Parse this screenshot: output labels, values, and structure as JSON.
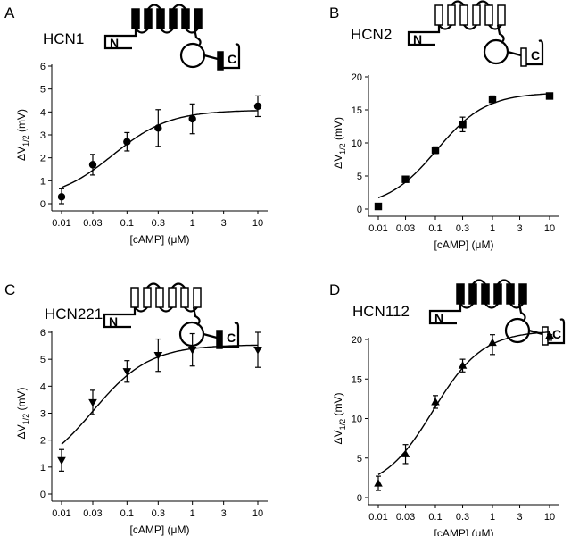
{
  "chart_data": [
    {
      "type": "scatter",
      "panel_label": "A",
      "construct": "HCN1",
      "xlabel": "[cAMP] (μM)",
      "ylabel_main": "ΔV",
      "ylabel_sub": "1/2",
      "ylabel_unit": " (mV)",
      "x_scale": "log",
      "xticks": [
        "0.01",
        "0.03",
        "0.1",
        "0.3",
        "1",
        "3",
        "10"
      ],
      "yticks": [
        "0",
        "1",
        "2",
        "3",
        "4",
        "5",
        "6"
      ],
      "ylim": [
        0,
        6
      ],
      "xlim": [
        0.01,
        10
      ],
      "marker": "circle",
      "cartoon_core": "filled",
      "cartoon_cnbd": "filled",
      "series": [
        {
          "x": [
            0.01,
            0.03,
            0.1,
            0.3,
            1,
            10
          ],
          "y": [
            0.3,
            1.7,
            2.7,
            3.3,
            3.7,
            4.25
          ],
          "err": [
            0.35,
            0.45,
            0.4,
            0.8,
            0.65,
            0.45
          ]
        }
      ]
    },
    {
      "type": "scatter",
      "panel_label": "B",
      "construct": "HCN2",
      "xlabel": "[cAMP] (μM)",
      "ylabel_main": "ΔV",
      "ylabel_sub": "1/2",
      "ylabel_unit": " (mV)",
      "x_scale": "log",
      "xticks": [
        "0.01",
        "0.03",
        "0.1",
        "0.3",
        "1",
        "3",
        "10"
      ],
      "yticks": [
        "0",
        "5",
        "10",
        "15",
        "20"
      ],
      "ylim": [
        0,
        20
      ],
      "xlim": [
        0.01,
        10
      ],
      "marker": "square",
      "cartoon_core": "open",
      "cartoon_cnbd": "open",
      "series": [
        {
          "x": [
            0.01,
            0.03,
            0.1,
            0.3,
            1,
            10
          ],
          "y": [
            0.4,
            4.5,
            8.9,
            12.8,
            16.6,
            17.1
          ],
          "err": [
            0.3,
            0.3,
            0.5,
            1.1,
            0.5,
            0.3
          ]
        }
      ]
    },
    {
      "type": "scatter",
      "panel_label": "C",
      "construct": "HCN221",
      "xlabel": "[cAMP] (μM)",
      "ylabel_main": "ΔV",
      "ylabel_sub": "1/2",
      "ylabel_unit": " (mV)",
      "x_scale": "log",
      "xticks": [
        "0.01",
        "0.03",
        "0.1",
        "0.3",
        "1",
        "3",
        "10"
      ],
      "yticks": [
        "0",
        "1",
        "2",
        "3",
        "4",
        "5",
        "6"
      ],
      "ylim": [
        0,
        6
      ],
      "xlim": [
        0.01,
        10
      ],
      "marker": "triangle-down",
      "cartoon_core": "open",
      "cartoon_cnbd": "filled",
      "series": [
        {
          "x": [
            0.01,
            0.03,
            0.1,
            0.3,
            1,
            10
          ],
          "y": [
            1.25,
            3.4,
            4.55,
            5.15,
            5.35,
            5.35
          ],
          "err": [
            0.4,
            0.45,
            0.4,
            0.6,
            0.6,
            0.65
          ]
        }
      ]
    },
    {
      "type": "scatter",
      "panel_label": "D",
      "construct": "HCN112",
      "xlabel": "[cAMP] (μM)",
      "ylabel_main": "ΔV",
      "ylabel_sub": "1/2",
      "ylabel_unit": " (mV)",
      "x_scale": "log",
      "xticks": [
        "0.01",
        "0.03",
        "0.1",
        "0.3",
        "1",
        "3",
        "10"
      ],
      "yticks": [
        "0",
        "5",
        "10",
        "15",
        "20"
      ],
      "ylim": [
        0,
        20
      ],
      "xlim": [
        0.01,
        10
      ],
      "marker": "triangle-up",
      "cartoon_core": "filled",
      "cartoon_cnbd": "open",
      "series": [
        {
          "x": [
            0.01,
            0.03,
            0.1,
            0.3,
            1,
            10
          ],
          "y": [
            1.8,
            5.5,
            12.1,
            16.7,
            19.6,
            20.5
          ],
          "err": [
            0.9,
            1.2,
            0.8,
            0.8,
            1.5,
            0.6
          ]
        }
      ]
    }
  ],
  "cartoon_labels": {
    "n_terminus": "N",
    "c_terminus": "C"
  }
}
